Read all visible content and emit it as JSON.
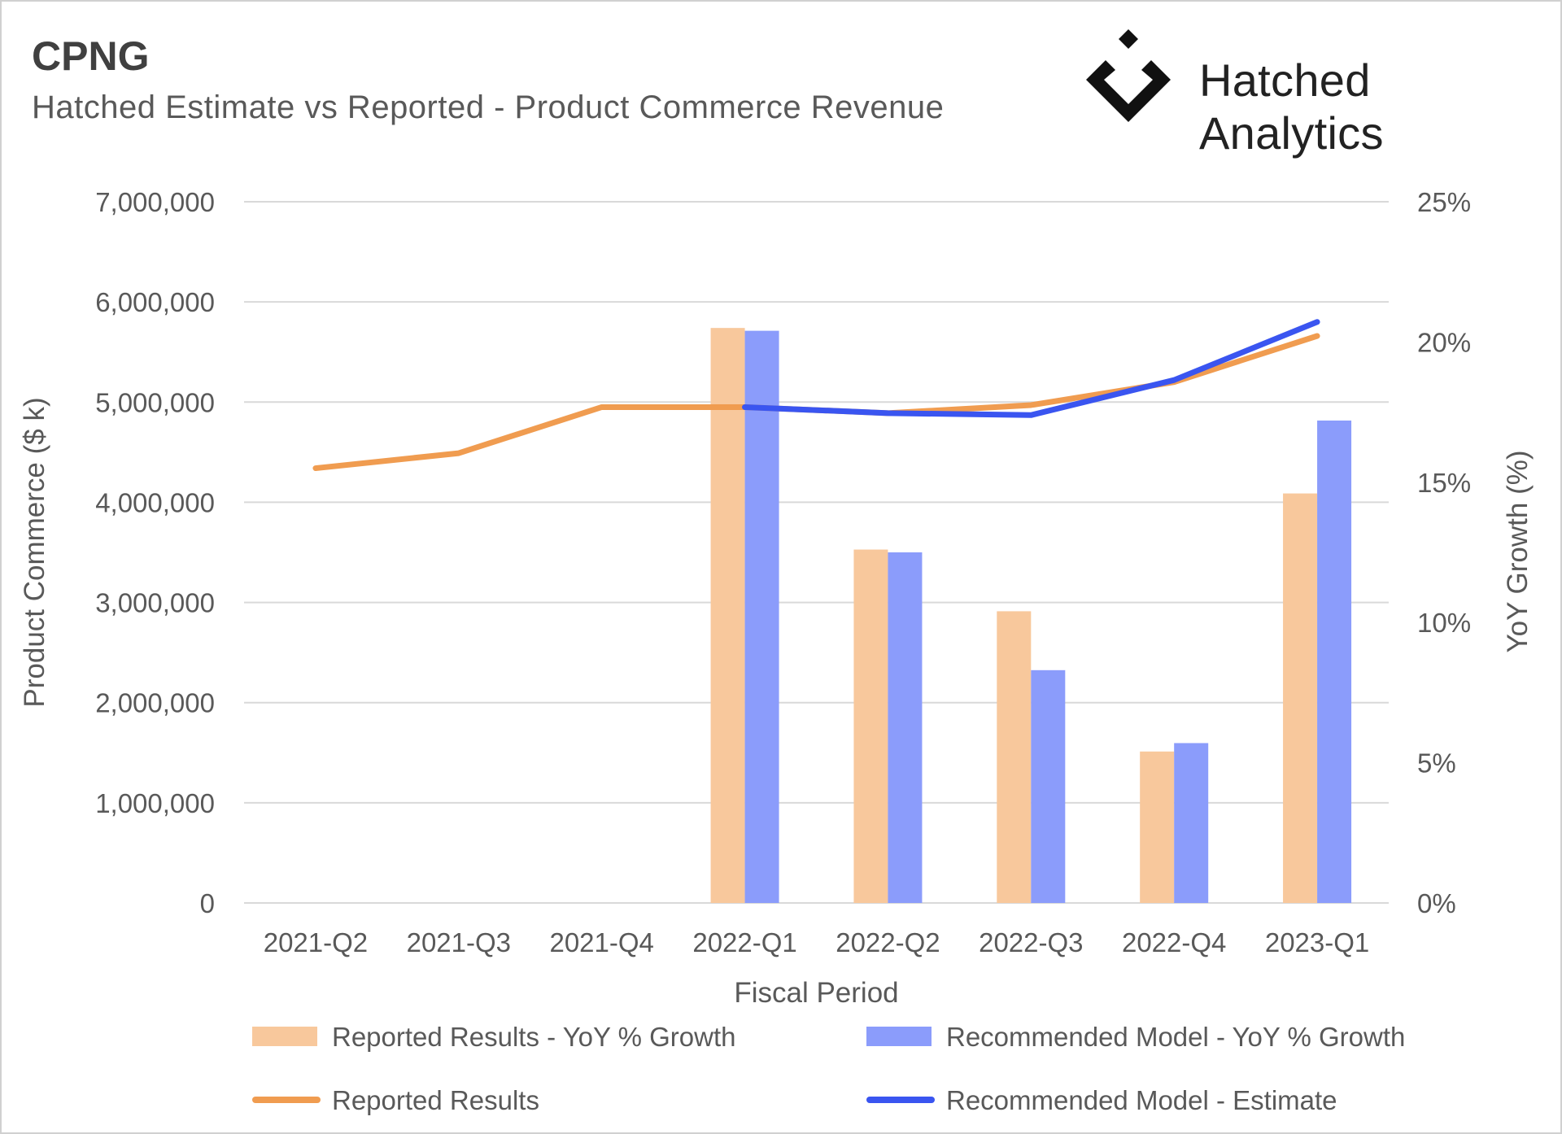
{
  "header": {
    "ticker": "CPNG",
    "subtitle": "Hatched Estimate vs Reported - Product Commerce Revenue",
    "brand": "Hatched Analytics",
    "brand_icon": "hatched-diamond-logo"
  },
  "colors": {
    "reported_bar": "#f8c89c",
    "model_bar": "#8b9cfb",
    "reported_line": "#f09c50",
    "model_line": "#3a55f0",
    "grid": "#d9d9d9",
    "text": "#595959"
  },
  "chart_data": {
    "type": "bar",
    "categories": [
      "2021-Q2",
      "2021-Q3",
      "2021-Q4",
      "2022-Q1",
      "2022-Q2",
      "2022-Q3",
      "2022-Q4",
      "2023-Q1"
    ],
    "xlabel": "Fiscal Period",
    "ylabel": "Product Commerce ($ k)",
    "y2label": "YoY Growth (%)",
    "ylim": [
      0,
      7000000
    ],
    "y2lim": [
      0,
      25
    ],
    "yticks": [
      "0",
      "1,000,000",
      "2,000,000",
      "3,000,000",
      "4,000,000",
      "5,000,000",
      "6,000,000",
      "7,000,000"
    ],
    "y2ticks": [
      "0%",
      "5%",
      "10%",
      "15%",
      "20%",
      "25%"
    ],
    "grid": true,
    "legend_position": "bottom",
    "series": [
      {
        "name": "Reported Results - YoY % Growth",
        "type": "bar",
        "axis": "right",
        "values": [
          null,
          null,
          null,
          20.5,
          12.6,
          10.4,
          5.4,
          14.6
        ]
      },
      {
        "name": "Recommended Model - YoY % Growth",
        "type": "bar",
        "axis": "right",
        "values": [
          null,
          null,
          null,
          20.4,
          12.5,
          8.3,
          5.7,
          17.2
        ]
      },
      {
        "name": "Reported Results",
        "type": "line",
        "axis": "left",
        "values": [
          4340000,
          4490000,
          4950000,
          4950000,
          4890000,
          4970000,
          5200000,
          5660000
        ]
      },
      {
        "name": "Recommended Model - Estimate",
        "type": "line",
        "axis": "left",
        "values": [
          null,
          null,
          null,
          4950000,
          4890000,
          4870000,
          5220000,
          5800000
        ]
      }
    ]
  }
}
